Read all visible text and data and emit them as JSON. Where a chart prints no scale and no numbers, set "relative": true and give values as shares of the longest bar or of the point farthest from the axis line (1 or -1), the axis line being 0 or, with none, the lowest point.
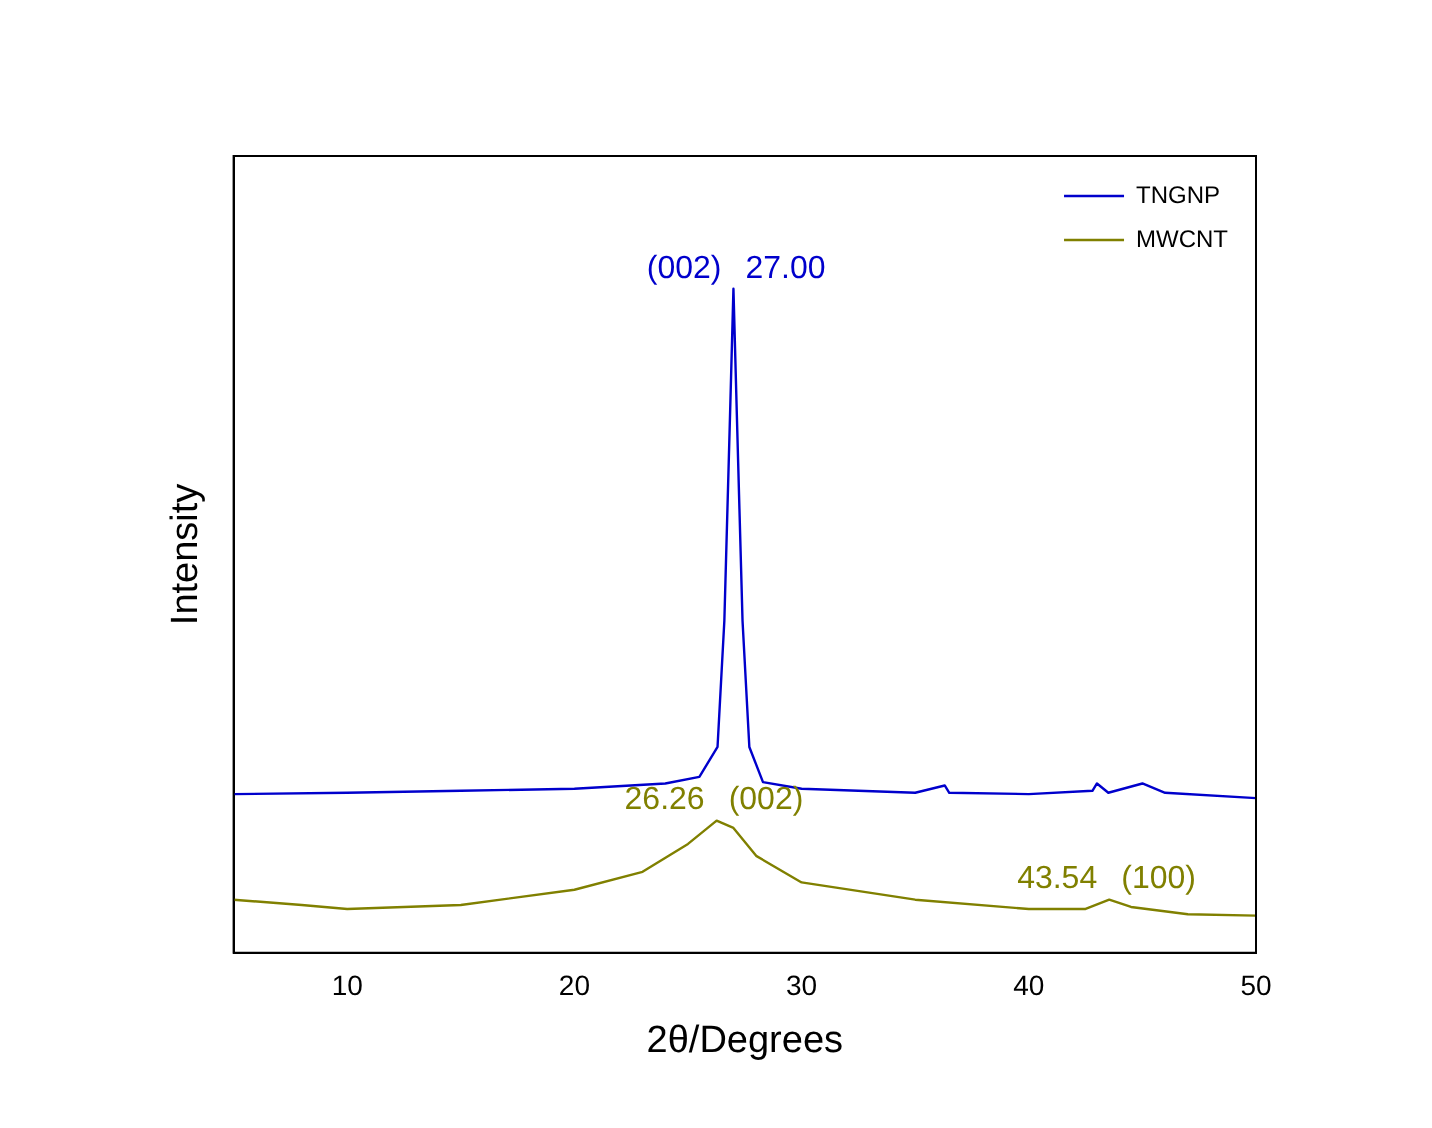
{
  "chart_data": {
    "type": "line",
    "xlabel": "2θ/Degrees",
    "ylabel": "Intensity",
    "relative": true,
    "xlim": [
      5,
      50
    ],
    "xticks": [
      10,
      20,
      30,
      40,
      50
    ],
    "grid": false,
    "legend": "top right",
    "series": [
      {
        "name": "TNGNP",
        "color": "#0000cc",
        "x": [
          5,
          10,
          15,
          20,
          24,
          25.5,
          26.3,
          26.6,
          26.85,
          27,
          27.15,
          27.4,
          27.7,
          28.3,
          30,
          35,
          36.3,
          36.5,
          40,
          42.8,
          43,
          43.5,
          45,
          46,
          50
        ],
        "values": [
          0.239,
          0.241,
          0.244,
          0.247,
          0.255,
          0.265,
          0.31,
          0.5,
          0.81,
          1,
          0.81,
          0.5,
          0.31,
          0.257,
          0.247,
          0.241,
          0.252,
          0.241,
          0.239,
          0.244,
          0.255,
          0.241,
          0.255,
          0.241,
          0.233
        ]
      },
      {
        "name": "MWCNT",
        "color": "#808000",
        "x": [
          5,
          8,
          10,
          15,
          20,
          23,
          25,
          26.26,
          27,
          28,
          30,
          35,
          40,
          42.5,
          43.54,
          44.5,
          47,
          50
        ],
        "values": [
          0.08,
          0.072,
          0.066,
          0.072,
          0.095,
          0.122,
          0.164,
          0.199,
          0.188,
          0.146,
          0.106,
          0.08,
          0.066,
          0.066,
          0.08,
          0.069,
          0.058,
          0.056
        ]
      }
    ],
    "annotations": [
      {
        "text": "(002)",
        "x": 27,
        "y": 1
      },
      {
        "text": "27.00",
        "x": 27,
        "y": 1
      },
      {
        "text": "26.26",
        "x": 26.26,
        "y": 0.199
      },
      {
        "text": "(002)",
        "x": 26.26,
        "y": 0.199
      },
      {
        "text": "43.54",
        "x": 43.54,
        "y": 0.08
      },
      {
        "text": "(100)",
        "x": 43.54,
        "y": 0.08
      }
    ]
  }
}
